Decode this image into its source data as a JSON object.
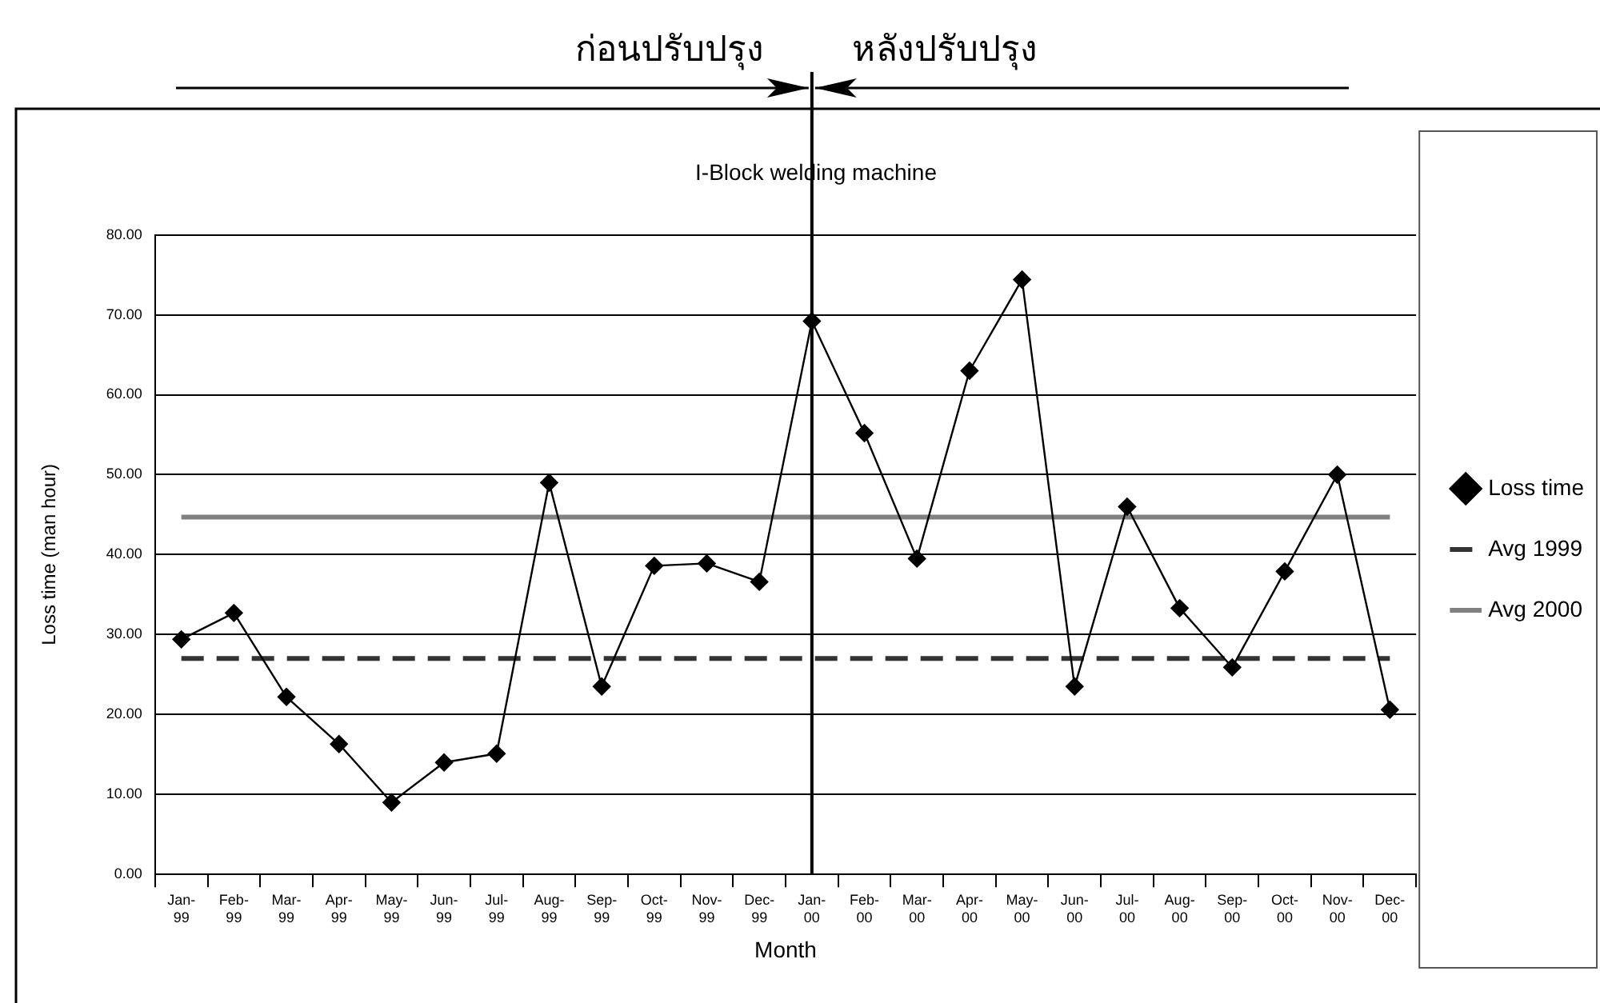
{
  "chart_data": {
    "type": "line",
    "title": "I-Block welding machine",
    "xlabel": "Month",
    "ylabel": "Loss time (man hour)",
    "categories": [
      "Jan-\n99",
      "Feb-\n99",
      "Mar-\n99",
      "Apr-\n99",
      "May-\n99",
      "Jun-\n99",
      "Jul-\n99",
      "Aug-\n99",
      "Sep-\n99",
      "Oct-\n99",
      "Nov-\n99",
      "Dec-\n99",
      "Jan-\n00",
      "Feb-\n00",
      "Mar-\n00",
      "Apr-\n00",
      "May-\n00",
      "Jun-\n00",
      "Jul-\n00",
      "Aug-\n00",
      "Sep-\n00",
      "Oct-\n00",
      "Nov-\n00",
      "Dec-\n00"
    ],
    "series": [
      {
        "name": "Loss time",
        "color": "#000000",
        "marker": "diamond",
        "line_style": "solid",
        "values": [
          29.4,
          32.7,
          22.2,
          16.3,
          9.0,
          14.0,
          15.1,
          49.0,
          23.5,
          38.6,
          38.9,
          36.6,
          69.2,
          55.2,
          39.5,
          63.0,
          74.4,
          23.5,
          46.0,
          33.3,
          25.9,
          37.9,
          50.0,
          20.6
        ]
      },
      {
        "name": "Avg 1999",
        "color": "#333333",
        "marker": "none",
        "line_style": "dashed",
        "values": [
          27.0,
          27.0,
          27.0,
          27.0,
          27.0,
          27.0,
          27.0,
          27.0,
          27.0,
          27.0,
          27.0,
          27.0,
          27.0,
          27.0,
          27.0,
          27.0,
          27.0,
          27.0,
          27.0,
          27.0,
          27.0,
          27.0,
          27.0,
          27.0
        ]
      },
      {
        "name": "Avg 2000",
        "color": "#808080",
        "marker": "none",
        "line_style": "solid",
        "values": [
          44.7,
          44.7,
          44.7,
          44.7,
          44.7,
          44.7,
          44.7,
          44.7,
          44.7,
          44.7,
          44.7,
          44.7,
          44.7,
          44.7,
          44.7,
          44.7,
          44.7,
          44.7,
          44.7,
          44.7,
          44.7,
          44.7,
          44.7,
          44.7
        ]
      }
    ],
    "ylim": [
      0,
      80
    ],
    "yticks": [
      {
        "value": 0,
        "label": "0.00"
      },
      {
        "value": 10,
        "label": "10.00"
      },
      {
        "value": 20,
        "label": "20.00"
      },
      {
        "value": 30,
        "label": "30.00"
      },
      {
        "value": 40,
        "label": "40.00"
      },
      {
        "value": 50,
        "label": "50.00"
      },
      {
        "value": 60,
        "label": "60.00"
      },
      {
        "value": 70,
        "label": "70.00"
      },
      {
        "value": 80,
        "label": "80.00"
      }
    ],
    "grid": "y",
    "legend": "right",
    "ref_lines": [
      {
        "axis": "x",
        "value": "Jan-\n00",
        "color": "#000000",
        "line_style": "solid"
      }
    ],
    "annotations": [
      "ก่อนปรับปรุง",
      "หลังปรับปรุง"
    ]
  }
}
